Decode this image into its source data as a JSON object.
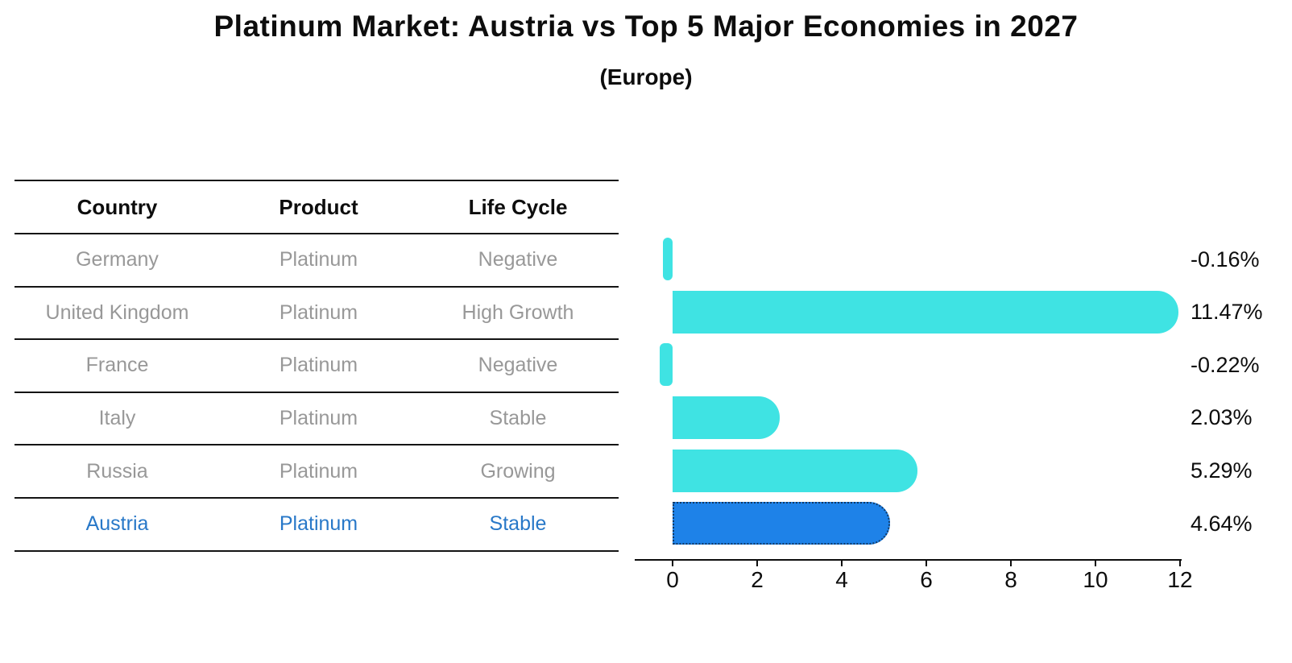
{
  "title": "Platinum Market: Austria vs Top 5 Major Economies in 2027",
  "subtitle": "(Europe)",
  "table": {
    "headers": [
      "Country",
      "Product",
      "Life Cycle"
    ],
    "rows": [
      {
        "country": "Germany",
        "product": "Platinum",
        "life_cycle": "Negative",
        "highlight": false
      },
      {
        "country": "United Kingdom",
        "product": "Platinum",
        "life_cycle": "High Growth",
        "highlight": false
      },
      {
        "country": "France",
        "product": "Platinum",
        "life_cycle": "Negative",
        "highlight": false
      },
      {
        "country": "Italy",
        "product": "Platinum",
        "life_cycle": "Stable",
        "highlight": false
      },
      {
        "country": "Russia",
        "product": "Platinum",
        "life_cycle": "Growing",
        "highlight": false
      },
      {
        "country": "Austria",
        "product": "Platinum",
        "life_cycle": "Stable",
        "highlight": true
      }
    ]
  },
  "chart_data": {
    "type": "bar",
    "orientation": "horizontal",
    "title": "Platinum Market: Austria vs Top 5 Major Economies in 2027",
    "subtitle": "(Europe)",
    "categories": [
      "Germany",
      "United Kingdom",
      "France",
      "Italy",
      "Russia",
      "Austria"
    ],
    "values": [
      -0.16,
      11.47,
      -0.22,
      2.03,
      5.29,
      4.64
    ],
    "value_labels": [
      "-0.16%",
      "11.47%",
      "-0.22%",
      "2.03%",
      "5.29%",
      "4.64%"
    ],
    "xticks": [
      0,
      2,
      4,
      6,
      8,
      10,
      12
    ],
    "xtick_labels": [
      "0",
      "2",
      "4",
      "6",
      "8",
      "10",
      "12"
    ],
    "xlim": [
      -0.9,
      12.05
    ],
    "grid": false,
    "legend": false,
    "highlight_index": 5,
    "bar_color": "#3FE3E3",
    "highlight_bar_color": "#1E82E8",
    "highlight_border_color": "#123A66",
    "highlight_text_color": "#2878C8",
    "muted_text_color": "#989898",
    "axis_color": "#0d0d0d"
  }
}
